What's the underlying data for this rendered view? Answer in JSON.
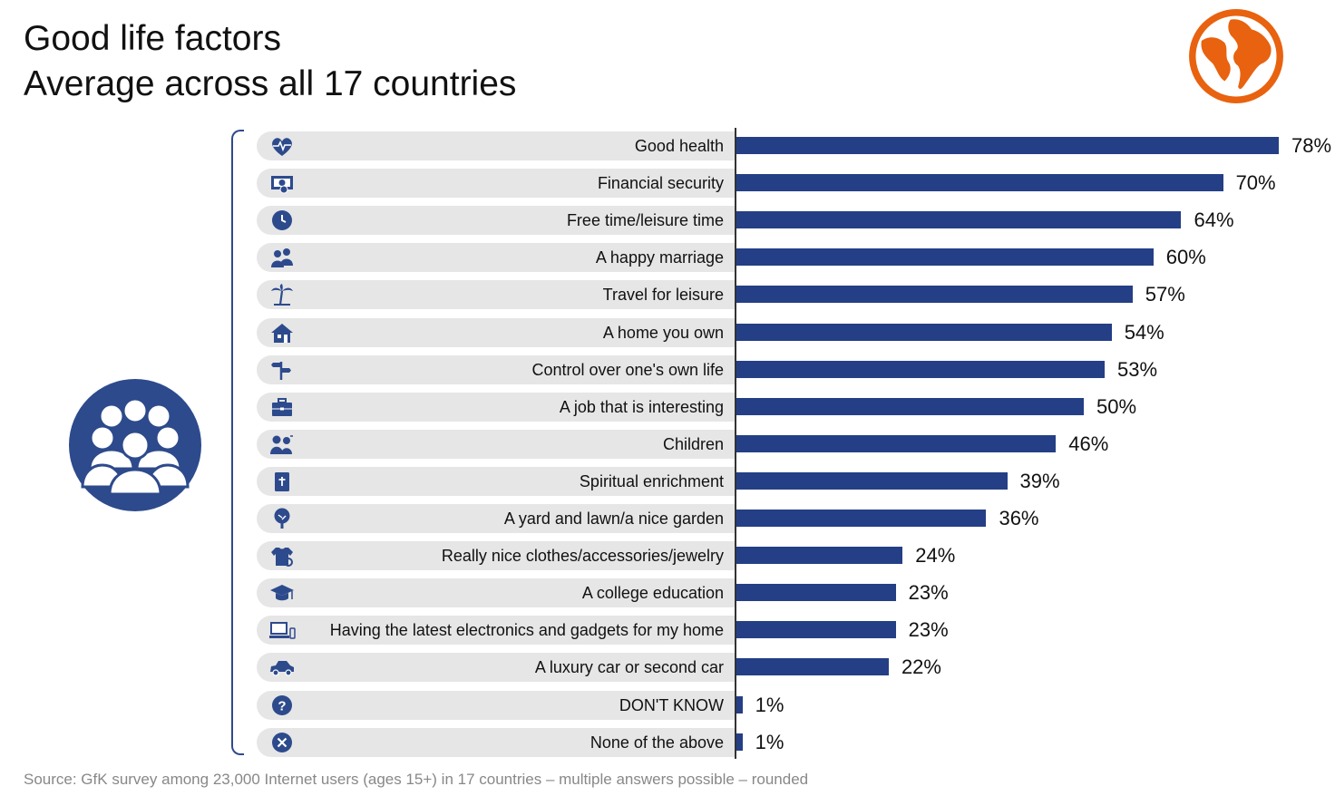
{
  "title_line1": "Good life factors",
  "title_line2": "Average across all 17 countries",
  "source": "Source: GfK survey among 23,000 Internet users (ages 15+) in 17 countries – multiple answers possible – rounded",
  "colors": {
    "bar": "#243f85",
    "icon": "#2d4a8c",
    "pill": "#e6e6e6",
    "globe": "#e8620f"
  },
  "decor_icons": [
    "globe-icon",
    "people-group-icon"
  ],
  "chart_data": {
    "type": "bar",
    "orientation": "horizontal",
    "title": "Good life factors\nAverage across all 17 countries",
    "value_suffix": "%",
    "xlim": [
      0,
      80
    ],
    "grid": false,
    "categories": [
      "Good health",
      "Financial security",
      "Free time/leisure time",
      "A happy marriage",
      "Travel for leisure",
      "A home you own",
      "Control over one's own life",
      "A job that is interesting",
      "Children",
      "Spiritual enrichment",
      "A yard and lawn/a nice garden",
      "Really nice clothes/accessories/jewelry",
      "A college education",
      "Having the latest electronics and gadgets for my home",
      "A luxury car or second car",
      "DON'T KNOW",
      "None of the above"
    ],
    "values": [
      78,
      70,
      64,
      60,
      57,
      54,
      53,
      50,
      46,
      39,
      36,
      24,
      23,
      23,
      22,
      1,
      1
    ],
    "icons": [
      "heart-pulse-icon",
      "money-icon",
      "clock-icon",
      "couple-icon",
      "palm-tree-icon",
      "house-icon",
      "signpost-icon",
      "briefcase-icon",
      "children-icon",
      "bible-icon",
      "tree-icon",
      "shirt-icon",
      "graduation-cap-icon",
      "computer-icon",
      "car-icon",
      "question-icon",
      "x-circle-icon"
    ]
  }
}
